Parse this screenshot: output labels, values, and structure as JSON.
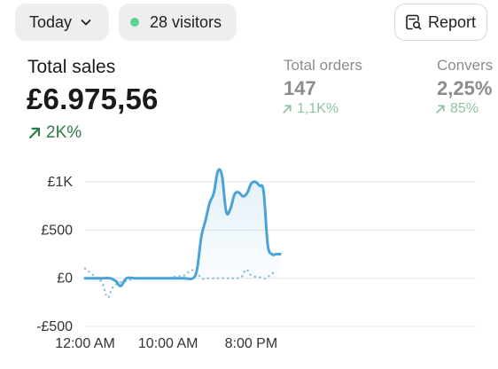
{
  "header": {
    "period_label": "Today",
    "visitors_label": "28 visitors",
    "report_label": "Report",
    "colors": {
      "pill_bg": "#eeeeee",
      "live_dot": "#58d68d"
    },
    "icons": [
      "chevron-down-icon",
      "live-dot-icon",
      "report-search-icon"
    ]
  },
  "metrics": {
    "total_sales": {
      "label": "Total sales",
      "value": "£6.975,56",
      "change": "2K%",
      "icon": "arrow-up-right-icon"
    },
    "total_orders": {
      "label": "Total orders",
      "value": "147",
      "change": "1,1K%",
      "icon": "arrow-up-right-icon"
    },
    "conversion": {
      "label": "Convers",
      "value": "2,25%",
      "change": "85%",
      "icon": "arrow-up-right-icon"
    },
    "colors": {
      "positive_strong": "#2f7a4a",
      "positive_muted": "#8fc4a2",
      "muted_text": "#8c8c8c"
    }
  },
  "chart_data": {
    "type": "line",
    "ylim": [
      -500,
      1150
    ],
    "y_ticks": [
      {
        "value": 1000,
        "label": "£1K"
      },
      {
        "value": 500,
        "label": "£500"
      },
      {
        "value": 0,
        "label": "£0"
      },
      {
        "value": -500,
        "label": "-£500"
      }
    ],
    "x_tick_labels": [
      "12:00 AM",
      "10:00 AM",
      "8:00 PM"
    ],
    "x_tick_hours": [
      0,
      10,
      20
    ],
    "grid": true,
    "series": [
      {
        "style": "solid",
        "color": "#4aa3d8",
        "fill": true,
        "x": [
          0,
          1,
          2,
          3,
          3.7,
          4.3,
          5,
          6,
          7,
          8,
          9,
          10,
          11,
          12,
          13,
          13.5,
          14,
          14.5,
          15,
          15.5,
          16,
          16.5,
          17,
          17.5,
          18,
          18.5,
          19,
          19.5,
          20,
          20.5,
          21,
          21.5,
          22,
          22.5,
          23,
          23.5
        ],
        "y": [
          0,
          0,
          0,
          0,
          -30,
          -80,
          0,
          0,
          0,
          0,
          0,
          0,
          0,
          0,
          0,
          100,
          430,
          600,
          780,
          880,
          1110,
          1060,
          690,
          720,
          870,
          890,
          850,
          880,
          980,
          1000,
          960,
          900,
          350,
          250,
          250,
          250
        ]
      },
      {
        "style": "dotted",
        "color": "#86bfdc",
        "fill": false,
        "x": [
          0,
          1,
          2,
          2.7,
          3.3,
          4,
          5,
          6,
          7,
          8,
          9,
          10,
          11,
          12,
          12.7,
          13.5,
          14,
          15,
          16,
          17,
          18,
          18.8,
          19.4,
          20,
          21,
          21.8,
          22.5,
          23
        ],
        "y": [
          100,
          30,
          -40,
          -200,
          -100,
          -50,
          -30,
          0,
          0,
          0,
          0,
          0,
          20,
          30,
          80,
          70,
          0,
          0,
          0,
          0,
          0,
          10,
          90,
          30,
          10,
          0,
          50,
          50
        ]
      }
    ]
  }
}
